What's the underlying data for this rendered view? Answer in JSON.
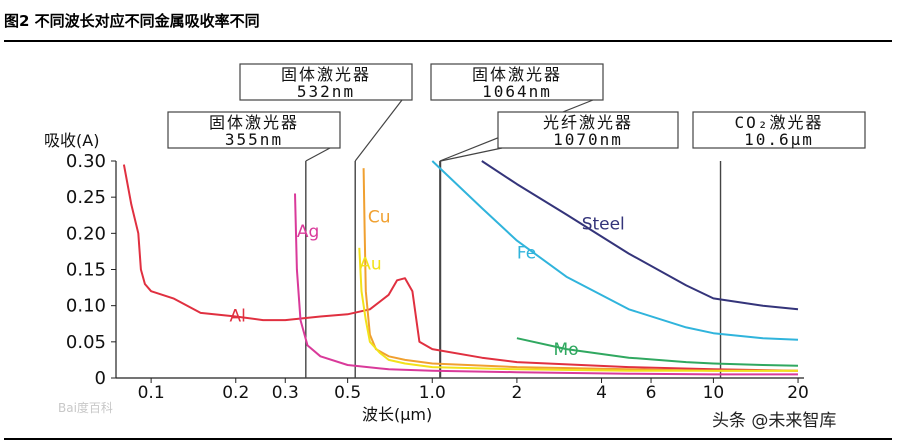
{
  "figure": {
    "title": "图2  不同波长对应不同金属吸收率不同"
  },
  "chart_data": {
    "type": "line",
    "xlabel": "波长(μm)",
    "ylabel": "吸收(A)",
    "x_scale": "log",
    "xlim": [
      0.075,
      21
    ],
    "ylim": [
      0,
      0.3
    ],
    "x_ticks": [
      0.1,
      0.2,
      0.3,
      0.5,
      1.0,
      2,
      4,
      6,
      10,
      20
    ],
    "x_tick_labels": [
      "0.1",
      "0.2",
      "0.3",
      "0.5",
      "1.0",
      "2",
      "4",
      "6",
      "10",
      "20"
    ],
    "y_ticks": [
      0,
      0.05,
      0.1,
      0.15,
      0.2,
      0.25,
      0.3
    ],
    "y_tick_labels": [
      "0",
      "0.05",
      "0.10",
      "0.15",
      "0.20",
      "0.25",
      "0.30"
    ],
    "grid": false,
    "series": [
      {
        "name": "Al",
        "color": "#e03040",
        "x": [
          0.08,
          0.085,
          0.09,
          0.092,
          0.095,
          0.1,
          0.12,
          0.15,
          0.2,
          0.25,
          0.3,
          0.4,
          0.5,
          0.6,
          0.7,
          0.75,
          0.8,
          0.85,
          0.9,
          1.0,
          1.5,
          2,
          5,
          10,
          20
        ],
        "y": [
          0.295,
          0.24,
          0.2,
          0.15,
          0.13,
          0.12,
          0.11,
          0.09,
          0.085,
          0.08,
          0.08,
          0.085,
          0.088,
          0.095,
          0.115,
          0.135,
          0.138,
          0.12,
          0.05,
          0.04,
          0.028,
          0.022,
          0.015,
          0.012,
          0.01
        ]
      },
      {
        "name": "Ag",
        "color": "#d93a9a",
        "x": [
          0.325,
          0.33,
          0.34,
          0.36,
          0.4,
          0.5,
          0.7,
          1.0,
          2,
          5,
          10,
          20
        ],
        "y": [
          0.255,
          0.15,
          0.08,
          0.045,
          0.03,
          0.018,
          0.012,
          0.01,
          0.008,
          0.006,
          0.005,
          0.005
        ]
      },
      {
        "name": "Cu",
        "color": "#f0a030",
        "x": [
          0.57,
          0.575,
          0.58,
          0.6,
          0.63,
          0.7,
          0.8,
          1.0,
          2,
          5,
          10,
          20
        ],
        "y": [
          0.29,
          0.2,
          0.12,
          0.06,
          0.04,
          0.03,
          0.025,
          0.02,
          0.015,
          0.012,
          0.01,
          0.01
        ]
      },
      {
        "name": "Au",
        "color": "#f2e21a",
        "x": [
          0.55,
          0.56,
          0.58,
          0.6,
          0.65,
          0.7,
          0.8,
          1.0,
          2,
          5,
          10,
          20
        ],
        "y": [
          0.18,
          0.12,
          0.08,
          0.05,
          0.035,
          0.025,
          0.02,
          0.015,
          0.012,
          0.01,
          0.01,
          0.01
        ]
      },
      {
        "name": "Fe",
        "color": "#30b4dc",
        "x": [
          1.0,
          1.5,
          2,
          3,
          5,
          8,
          10,
          15,
          20
        ],
        "y": [
          0.3,
          0.235,
          0.19,
          0.14,
          0.095,
          0.07,
          0.062,
          0.055,
          0.053
        ]
      },
      {
        "name": "Steel",
        "color": "#34347a",
        "x": [
          1.5,
          2,
          3,
          5,
          8,
          10,
          15,
          20
        ],
        "y": [
          0.3,
          0.268,
          0.226,
          0.172,
          0.128,
          0.11,
          0.1,
          0.095
        ]
      },
      {
        "name": "Mo",
        "color": "#30a860",
        "x": [
          2.0,
          3,
          5,
          8,
          10,
          15,
          20
        ],
        "y": [
          0.055,
          0.04,
          0.028,
          0.022,
          0.02,
          0.018,
          0.017
        ]
      }
    ],
    "series_labels": [
      {
        "text": "Al",
        "x": 0.19,
        "y": 0.078
      },
      {
        "text": "Ag",
        "x": 0.33,
        "y": 0.195
      },
      {
        "text": "Cu",
        "x": 0.59,
        "y": 0.215
      },
      {
        "text": "Au",
        "x": 0.55,
        "y": 0.15
      },
      {
        "text": "Fe",
        "x": 2.0,
        "y": 0.165
      },
      {
        "text": "Steel",
        "x": 3.4,
        "y": 0.205
      },
      {
        "text": "Mo",
        "x": 2.7,
        "y": 0.032
      }
    ],
    "laser_markers": [
      {
        "name": "solid-355",
        "x": 0.355,
        "lines": [
          "固体激光器",
          "355nm"
        ]
      },
      {
        "name": "solid-532",
        "x": 0.532,
        "lines": [
          "固体激光器",
          "532nm"
        ]
      },
      {
        "name": "solid-1064",
        "x": 1.064,
        "lines": [
          "固体激光器",
          "1064nm"
        ]
      },
      {
        "name": "fiber-1070",
        "x": 1.07,
        "lines": [
          "光纤激光器",
          "1070nm"
        ]
      },
      {
        "name": "co2-10600",
        "x": 10.6,
        "lines": [
          "CO₂激光器",
          "10.6μm"
        ]
      }
    ]
  },
  "watermark": "头条 @未来智库",
  "baidu_mark": "Bai度百科"
}
